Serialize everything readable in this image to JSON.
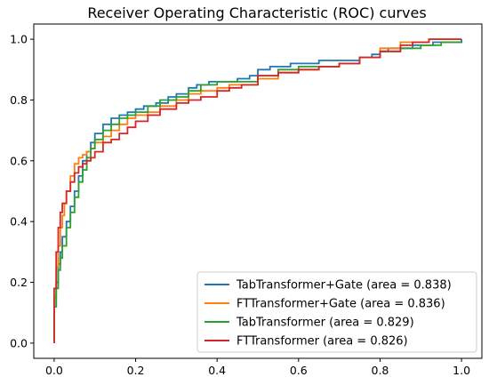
{
  "chart_data": {
    "type": "line",
    "title": "Receiver Operating Characteristic (ROC) curves",
    "xlabel": "",
    "ylabel": "",
    "xlim": [
      -0.05,
      1.05
    ],
    "ylim": [
      -0.05,
      1.05
    ],
    "xticks": [
      "0.0",
      "0.2",
      "0.4",
      "0.6",
      "0.8",
      "1.0"
    ],
    "yticks": [
      "0.0",
      "0.2",
      "0.4",
      "0.6",
      "0.8",
      "1.0"
    ],
    "legend_position": "bottom-right",
    "grid": false,
    "series": [
      {
        "name": "TabTransformer+Gate (area = 0.838)",
        "color": "#1f77b4",
        "x": [
          0,
          0,
          0.005,
          0.01,
          0.015,
          0.02,
          0.03,
          0.04,
          0.05,
          0.06,
          0.07,
          0.08,
          0.09,
          0.1,
          0.12,
          0.14,
          0.16,
          0.18,
          0.2,
          0.22,
          0.25,
          0.28,
          0.3,
          0.33,
          0.35,
          0.38,
          0.4,
          0.43,
          0.45,
          0.48,
          0.5,
          0.53,
          0.55,
          0.58,
          0.6,
          0.65,
          0.7,
          0.75,
          0.78,
          0.8,
          0.82,
          0.85,
          0.88,
          0.9,
          0.93,
          0.96,
          1.0
        ],
        "y": [
          0,
          0.12,
          0.2,
          0.26,
          0.3,
          0.35,
          0.4,
          0.45,
          0.5,
          0.55,
          0.6,
          0.63,
          0.66,
          0.69,
          0.72,
          0.74,
          0.75,
          0.76,
          0.77,
          0.78,
          0.79,
          0.81,
          0.82,
          0.84,
          0.85,
          0.86,
          0.86,
          0.86,
          0.87,
          0.88,
          0.9,
          0.91,
          0.91,
          0.92,
          0.92,
          0.93,
          0.93,
          0.94,
          0.95,
          0.96,
          0.97,
          0.97,
          0.98,
          0.98,
          0.99,
          0.99,
          1.0
        ]
      },
      {
        "name": "FTTransformer+Gate (area = 0.836)",
        "color": "#ff7f0e",
        "x": [
          0,
          0,
          0.005,
          0.01,
          0.015,
          0.02,
          0.025,
          0.03,
          0.04,
          0.05,
          0.06,
          0.07,
          0.08,
          0.09,
          0.1,
          0.12,
          0.14,
          0.16,
          0.18,
          0.2,
          0.23,
          0.26,
          0.3,
          0.33,
          0.36,
          0.4,
          0.43,
          0.46,
          0.5,
          0.55,
          0.6,
          0.65,
          0.7,
          0.75,
          0.8,
          0.85,
          0.88,
          0.92,
          0.96,
          1.0
        ],
        "y": [
          0,
          0.15,
          0.25,
          0.32,
          0.38,
          0.42,
          0.46,
          0.5,
          0.55,
          0.59,
          0.61,
          0.62,
          0.63,
          0.64,
          0.66,
          0.68,
          0.7,
          0.72,
          0.74,
          0.75,
          0.76,
          0.78,
          0.8,
          0.82,
          0.83,
          0.84,
          0.85,
          0.85,
          0.87,
          0.89,
          0.9,
          0.91,
          0.92,
          0.94,
          0.97,
          0.99,
          0.99,
          1.0,
          1.0,
          1.0
        ]
      },
      {
        "name": "TabTransformer (area = 0.829)",
        "color": "#2ca02c",
        "x": [
          0,
          0,
          0.005,
          0.01,
          0.015,
          0.02,
          0.03,
          0.04,
          0.05,
          0.06,
          0.07,
          0.08,
          0.09,
          0.1,
          0.12,
          0.14,
          0.16,
          0.18,
          0.2,
          0.23,
          0.26,
          0.3,
          0.33,
          0.36,
          0.4,
          0.43,
          0.46,
          0.5,
          0.55,
          0.6,
          0.65,
          0.7,
          0.75,
          0.8,
          0.85,
          0.9,
          0.95,
          1.0
        ],
        "y": [
          0,
          0.12,
          0.18,
          0.24,
          0.28,
          0.32,
          0.38,
          0.43,
          0.48,
          0.53,
          0.57,
          0.61,
          0.64,
          0.67,
          0.7,
          0.72,
          0.74,
          0.75,
          0.76,
          0.78,
          0.8,
          0.81,
          0.83,
          0.85,
          0.86,
          0.86,
          0.86,
          0.88,
          0.9,
          0.91,
          0.91,
          0.92,
          0.94,
          0.96,
          0.97,
          0.98,
          0.99,
          0.99
        ]
      },
      {
        "name": "FTTransformer (area = 0.826)",
        "color": "#d62728",
        "x": [
          0,
          0,
          0.005,
          0.01,
          0.015,
          0.02,
          0.03,
          0.04,
          0.05,
          0.06,
          0.07,
          0.08,
          0.09,
          0.1,
          0.12,
          0.14,
          0.16,
          0.18,
          0.2,
          0.23,
          0.26,
          0.3,
          0.33,
          0.36,
          0.4,
          0.43,
          0.46,
          0.5,
          0.55,
          0.6,
          0.65,
          0.7,
          0.75,
          0.8,
          0.85,
          0.88,
          0.92,
          0.96,
          1.0
        ],
        "y": [
          0,
          0.18,
          0.3,
          0.38,
          0.43,
          0.46,
          0.5,
          0.53,
          0.56,
          0.58,
          0.59,
          0.6,
          0.61,
          0.63,
          0.66,
          0.67,
          0.69,
          0.71,
          0.73,
          0.75,
          0.77,
          0.79,
          0.8,
          0.81,
          0.83,
          0.84,
          0.85,
          0.88,
          0.89,
          0.9,
          0.91,
          0.92,
          0.94,
          0.96,
          0.98,
          0.99,
          1.0,
          1.0,
          1.0
        ]
      }
    ]
  }
}
